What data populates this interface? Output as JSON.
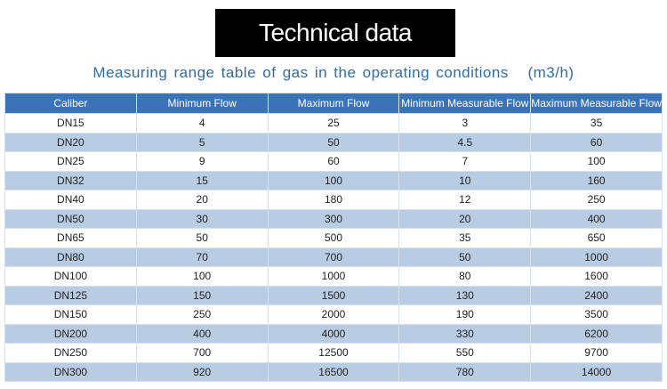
{
  "header": {
    "title": "Technical data",
    "subtitle": "Measuring range table of gas in the operating conditions   (m3/h)"
  },
  "table": {
    "columns": [
      "Caliber",
      "Minimum Flow",
      "Maximum Flow",
      "Minimum Measurable Flow",
      "Maximum Measurable Flow"
    ],
    "rows": [
      [
        "DN15",
        "4",
        "25",
        "3",
        "35"
      ],
      [
        "DN20",
        "5",
        "50",
        "4.5",
        "60"
      ],
      [
        "DN25",
        "9",
        "60",
        "7",
        "100"
      ],
      [
        "DN32",
        "15",
        "100",
        "10",
        "160"
      ],
      [
        "DN40",
        "20",
        "180",
        "12",
        "250"
      ],
      [
        "DN50",
        "30",
        "300",
        "20",
        "400"
      ],
      [
        "DN65",
        "50",
        "500",
        "35",
        "650"
      ],
      [
        "DN80",
        "70",
        "700",
        "50",
        "1000"
      ],
      [
        "DN100",
        "100",
        "1000",
        "80",
        "1600"
      ],
      [
        "DN125",
        "150",
        "1500",
        "130",
        "2400"
      ],
      [
        "DN150",
        "250",
        "2000",
        "190",
        "3500"
      ],
      [
        "DN200",
        "400",
        "4000",
        "330",
        "6200"
      ],
      [
        "DN250",
        "700",
        "12500",
        "550",
        "9700"
      ],
      [
        "DN300",
        "920",
        "16500",
        "780",
        "14000"
      ]
    ]
  }
}
